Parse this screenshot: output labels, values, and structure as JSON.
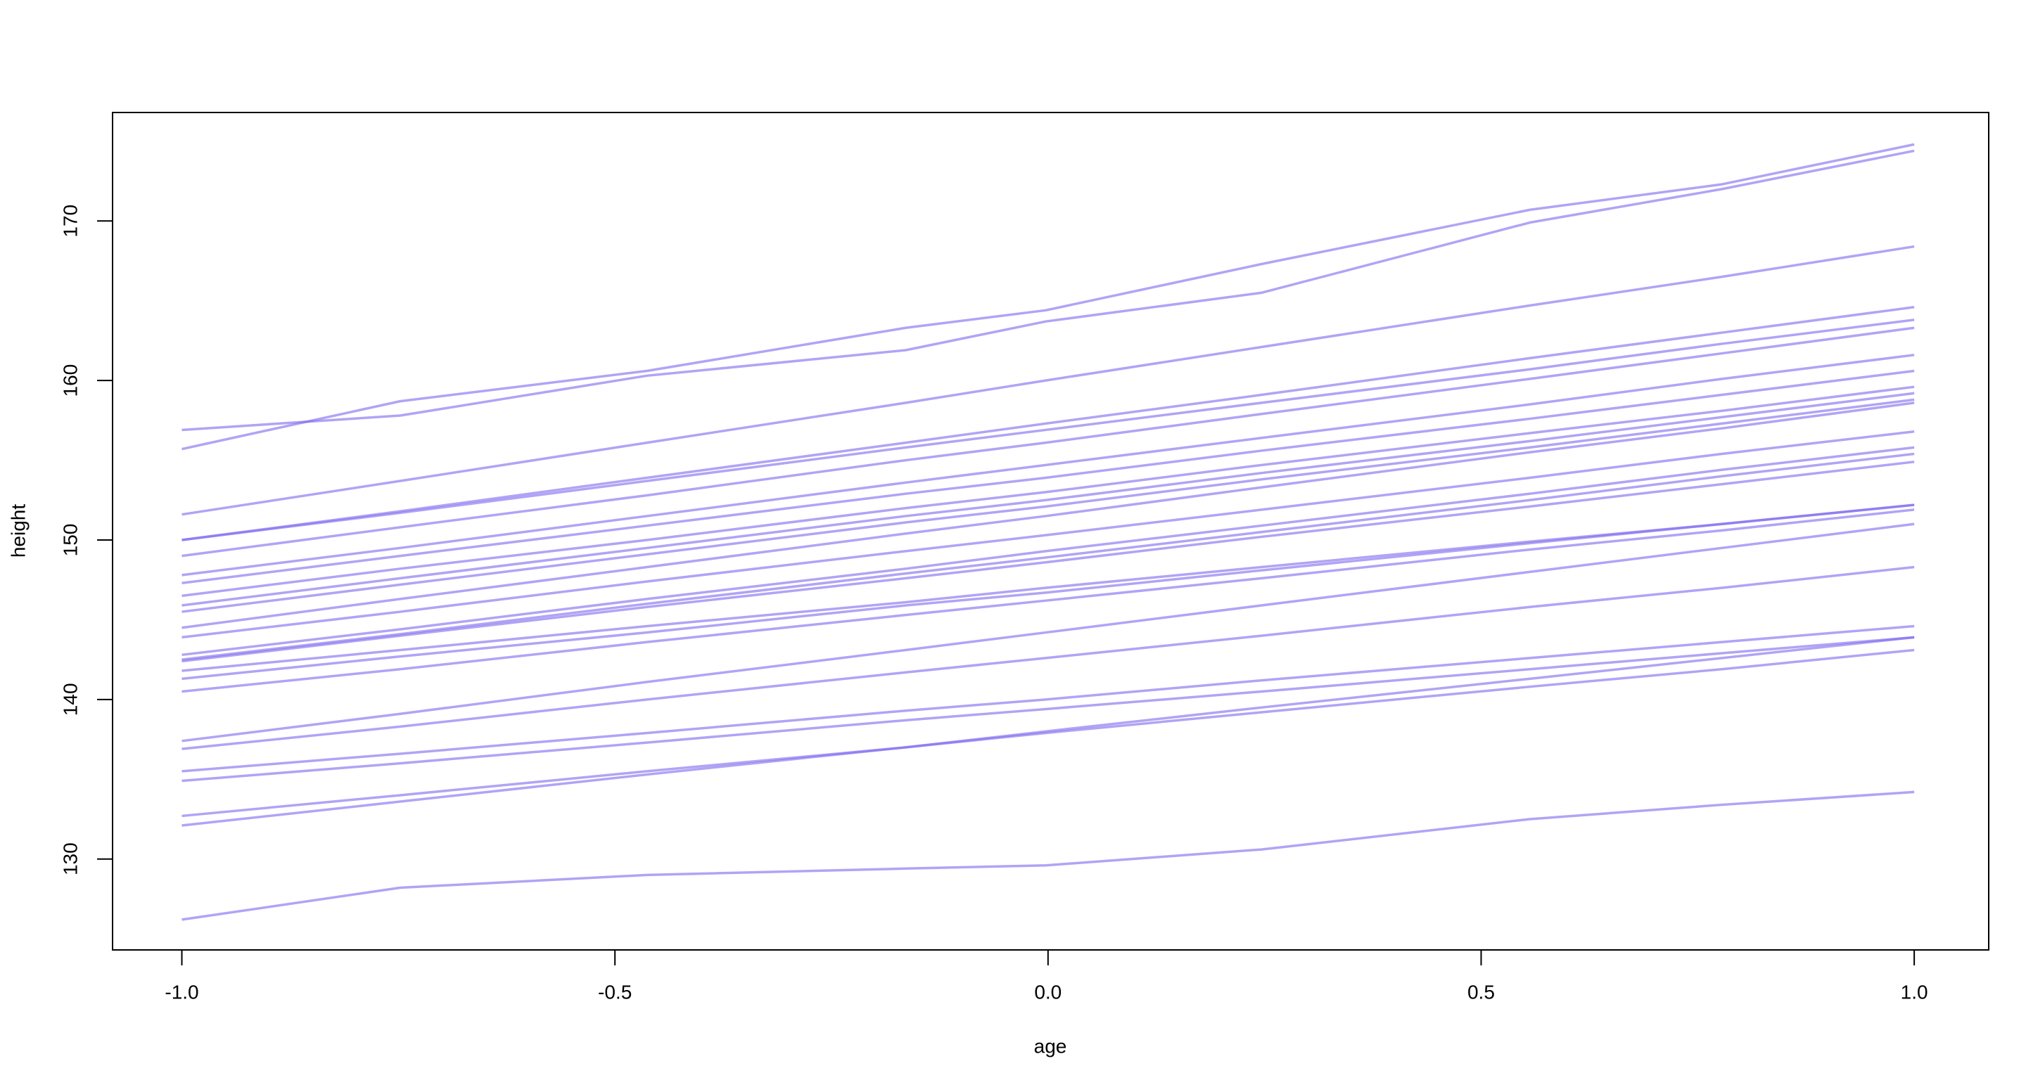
{
  "chart_data": {
    "type": "line",
    "x_label": "age",
    "y_label": "height",
    "x": [
      -1.0,
      -0.7479,
      -0.463,
      -0.1643,
      -0.0027,
      0.2466,
      0.5562,
      0.7781,
      1.0
    ],
    "color": "#7b68ee",
    "xlim": [
      -1.08,
      1.086
    ],
    "xticks": [
      {
        "value": -1.0,
        "label": "-1.0"
      },
      -0.5,
      {
        "value": 0,
        "label": "0.0"
      },
      0.5,
      {
        "value": 1.0,
        "label": "1.0"
      }
    ],
    "ylim": [
      124.3,
      176.8
    ],
    "yticks": [
      130,
      140,
      150,
      160,
      170
    ],
    "series": [
      {
        "values": [
          156.9,
          157.8,
          160.3,
          161.9,
          163.7,
          165.5,
          169.9,
          172.0,
          174.4
        ]
      },
      {
        "values": [
          155.7,
          158.7,
          160.6,
          163.3,
          164.4,
          167.3,
          170.7,
          172.3,
          174.8
        ]
      },
      {
        "values": [
          151.6,
          153.7,
          156.1,
          158.6,
          160.0,
          162.1,
          164.7,
          166.5,
          168.4
        ]
      },
      {
        "values": [
          150.0,
          151.8,
          153.9,
          156.1,
          157.3,
          159.1,
          161.4,
          163.0,
          164.6
        ]
      },
      {
        "values": [
          150.0,
          151.7,
          153.7,
          155.8,
          156.9,
          158.6,
          160.7,
          162.3,
          163.8
        ]
      },
      {
        "values": [
          149.0,
          150.8,
          152.8,
          155.0,
          156.1,
          157.9,
          160.1,
          161.7,
          163.3
        ]
      },
      {
        "values": [
          147.8,
          149.5,
          151.5,
          153.6,
          154.7,
          156.4,
          158.5,
          160.1,
          161.6
        ]
      },
      {
        "values": [
          147.3,
          149.0,
          150.9,
          152.9,
          153.9,
          155.6,
          157.6,
          159.1,
          160.6
        ]
      },
      {
        "values": [
          146.5,
          148.2,
          150.0,
          152.0,
          153.0,
          154.7,
          156.7,
          158.1,
          159.6
        ]
      },
      {
        "values": [
          145.9,
          147.6,
          149.5,
          151.5,
          152.5,
          154.2,
          156.2,
          157.7,
          159.2
        ]
      },
      {
        "values": [
          145.5,
          147.2,
          149.1,
          151.1,
          152.1,
          153.8,
          155.8,
          157.3,
          158.8
        ]
      },
      {
        "values": [
          144.5,
          146.3,
          148.3,
          150.4,
          151.5,
          153.3,
          155.5,
          157.0,
          158.6
        ]
      },
      {
        "values": [
          143.9,
          145.5,
          147.4,
          149.3,
          150.3,
          151.9,
          153.9,
          155.4,
          156.8
        ]
      },
      {
        "values": [
          142.8,
          144.4,
          146.3,
          148.2,
          149.3,
          150.9,
          152.9,
          154.4,
          155.8
        ]
      },
      {
        "values": [
          142.5,
          144.1,
          146.0,
          147.9,
          148.9,
          150.5,
          152.5,
          154.0,
          155.4
        ]
      },
      {
        "values": [
          142.4,
          144.0,
          145.8,
          147.6,
          148.6,
          150.2,
          152.1,
          153.5,
          154.9
        ]
      },
      {
        "values": [
          141.8,
          143.1,
          144.6,
          146.1,
          147.0,
          148.3,
          149.9,
          151.0,
          152.2
        ]
      },
      {
        "values": [
          141.3,
          142.7,
          144.2,
          145.9,
          146.7,
          148.1,
          149.8,
          151.0,
          152.2
        ]
      },
      {
        "values": [
          140.5,
          141.9,
          143.6,
          145.3,
          146.2,
          147.6,
          149.4,
          150.6,
          151.9
        ]
      },
      {
        "values": [
          137.4,
          139.1,
          141.1,
          143.1,
          144.2,
          145.9,
          148.0,
          149.5,
          151.0
        ]
      },
      {
        "values": [
          136.9,
          138.3,
          140.0,
          141.7,
          142.6,
          144.0,
          145.8,
          147.0,
          148.3
        ]
      },
      {
        "values": [
          135.5,
          136.6,
          137.9,
          139.3,
          140.0,
          141.2,
          142.6,
          143.6,
          144.6
        ]
      },
      {
        "values": [
          134.9,
          136.0,
          137.3,
          138.7,
          139.4,
          140.5,
          141.9,
          142.9,
          143.9
        ]
      },
      {
        "values": [
          132.7,
          134.0,
          135.5,
          137.0,
          137.9,
          139.2,
          140.8,
          141.9,
          143.1
        ]
      },
      {
        "values": [
          132.1,
          133.6,
          135.3,
          137.0,
          138.0,
          139.5,
          141.3,
          142.6,
          143.9
        ]
      },
      {
        "values": [
          126.2,
          128.2,
          129.0,
          129.4,
          129.6,
          130.6,
          132.5,
          133.4,
          134.2
        ]
      }
    ]
  }
}
